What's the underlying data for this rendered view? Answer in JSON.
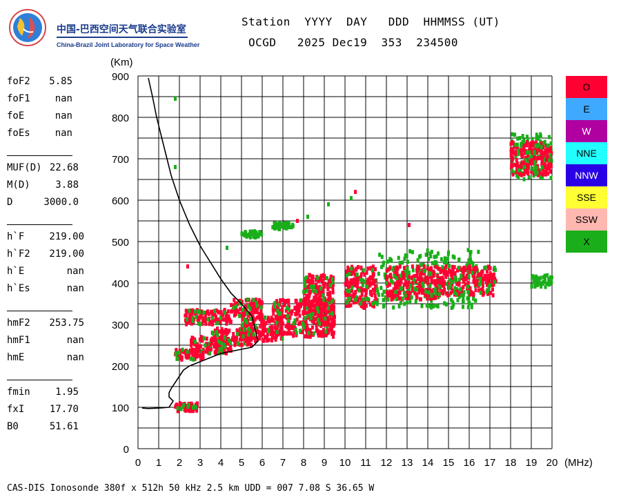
{
  "logo": {
    "cn_text": "中国-巴西空间天气联合实验室",
    "en_text": "China-Brazil Joint Laboratory for Space Weather"
  },
  "header": {
    "line1": "Station  YYYY  DAY   DDD  HHMMSS (UT)",
    "line2": "OCGD   2025 Dec19  353  234500"
  },
  "params": {
    "group1": [
      {
        "name": "foF2",
        "value": "5.85"
      },
      {
        "name": "foF1",
        "value": "nan"
      },
      {
        "name": "foE",
        "value": "nan"
      },
      {
        "name": "foEs",
        "value": "nan"
      }
    ],
    "group2": [
      {
        "name": "MUF(D)",
        "value": "22.68"
      },
      {
        "name": "M(D)",
        "value": "3.88"
      },
      {
        "name": "D",
        "value": "3000.0"
      }
    ],
    "group3": [
      {
        "name": "h`F",
        "value": "219.00"
      },
      {
        "name": "h`F2",
        "value": "219.00"
      },
      {
        "name": "h`E",
        "value": "nan"
      },
      {
        "name": "h`Es",
        "value": "nan"
      }
    ],
    "group4": [
      {
        "name": "hmF2",
        "value": "253.75"
      },
      {
        "name": "hmF1",
        "value": "nan"
      },
      {
        "name": "hmE",
        "value": "nan"
      }
    ],
    "group5": [
      {
        "name": "fmin",
        "value": "1.95"
      },
      {
        "name": "fxI",
        "value": "17.70"
      },
      {
        "name": "B0",
        "value": "51.61"
      }
    ]
  },
  "legend": [
    {
      "label": "O",
      "color": "#ff0033"
    },
    {
      "label": "E",
      "color": "#3fa9ff"
    },
    {
      "label": "W",
      "color": "#b000a0"
    },
    {
      "label": "NNE",
      "color": "#22ffff"
    },
    {
      "label": "NNW",
      "color": "#2a00e6"
    },
    {
      "label": "SSE",
      "color": "#ffff33"
    },
    {
      "label": "SSW",
      "color": "#ffb8b0"
    },
    {
      "label": "X",
      "color": "#1aaf1a"
    }
  ],
  "chart_data": {
    "type": "scatter",
    "xlabel": "(MHz)",
    "ylabel": "(Km)",
    "xlim": [
      0,
      20
    ],
    "ylim": [
      0,
      900
    ],
    "xticks": [
      "0",
      "1",
      "2",
      "3",
      "4",
      "5",
      "6",
      "7",
      "8",
      "9",
      "10",
      "11",
      "12",
      "13",
      "14",
      "15",
      "16",
      "17",
      "18",
      "19",
      "20"
    ],
    "yticks": [
      "0",
      "100",
      "200",
      "300",
      "400",
      "500",
      "600",
      "700",
      "800",
      "900"
    ],
    "grid": true,
    "o_trace_clusters": [
      {
        "x": [
          1.8,
          2.9
        ],
        "y": [
          90,
          110
        ]
      },
      {
        "x": [
          1.8,
          3.2
        ],
        "y": [
          215,
          240
        ]
      },
      {
        "x": [
          2.5,
          4.5
        ],
        "y": [
          230,
          270
        ]
      },
      {
        "x": [
          3.5,
          5.5
        ],
        "y": [
          250,
          290
        ]
      },
      {
        "x": [
          5.0,
          7.0
        ],
        "y": [
          260,
          320
        ]
      },
      {
        "x": [
          6.5,
          9.5
        ],
        "y": [
          270,
          360
        ]
      },
      {
        "x": [
          8.0,
          9.5
        ],
        "y": [
          300,
          420
        ]
      },
      {
        "x": [
          2.2,
          4.5
        ],
        "y": [
          300,
          335
        ]
      },
      {
        "x": [
          4.5,
          6.0
        ],
        "y": [
          320,
          360
        ]
      },
      {
        "x": [
          10.0,
          11.5
        ],
        "y": [
          340,
          440
        ]
      },
      {
        "x": [
          12.0,
          14.5
        ],
        "y": [
          360,
          440
        ]
      },
      {
        "x": [
          14.5,
          17.3
        ],
        "y": [
          370,
          440
        ]
      },
      {
        "x": [
          18.0,
          20.0
        ],
        "y": [
          660,
          740
        ]
      }
    ],
    "x_trace_clusters": [
      {
        "x": [
          5.0,
          6.0
        ],
        "y": [
          510,
          525
        ]
      },
      {
        "x": [
          6.5,
          7.5
        ],
        "y": [
          530,
          545
        ]
      },
      {
        "x": [
          18.0,
          20.0
        ],
        "y": [
          650,
          760
        ]
      },
      {
        "x": [
          11.5,
          16.5
        ],
        "y": [
          340,
          480
        ]
      },
      {
        "x": [
          19.0,
          20.0
        ],
        "y": [
          390,
          420
        ]
      }
    ],
    "profile": {
      "x": [
        0.5,
        0.7,
        0.9,
        1.1,
        1.3,
        1.6,
        2.0,
        2.5,
        3.0,
        3.5,
        4.0,
        4.5,
        5.0,
        5.5,
        5.8,
        5.5,
        5.0,
        4.0,
        3.0,
        2.5,
        2.2,
        2.0,
        1.8,
        1.6,
        1.5,
        1.5,
        1.5,
        1.7,
        1.5,
        1.0,
        0.5,
        0.2
      ],
      "y": [
        895,
        850,
        800,
        760,
        720,
        660,
        600,
        540,
        490,
        450,
        410,
        375,
        350,
        320,
        260,
        245,
        240,
        230,
        210,
        200,
        190,
        175,
        160,
        145,
        135,
        128,
        125,
        115,
        100,
        98,
        97,
        98
      ]
    },
    "stray_points": [
      {
        "x": 1.8,
        "y": 845,
        "color": "#1aaf1a"
      },
      {
        "x": 1.8,
        "y": 680,
        "color": "#1aaf1a"
      },
      {
        "x": 2.4,
        "y": 440,
        "color": "#ff0033"
      },
      {
        "x": 4.3,
        "y": 485,
        "color": "#1aaf1a"
      },
      {
        "x": 7.7,
        "y": 550,
        "color": "#ff0033"
      },
      {
        "x": 8.2,
        "y": 560,
        "color": "#1aaf1a"
      },
      {
        "x": 9.2,
        "y": 590,
        "color": "#1aaf1a"
      },
      {
        "x": 10.3,
        "y": 605,
        "color": "#1aaf1a"
      },
      {
        "x": 10.5,
        "y": 620,
        "color": "#ff0033"
      },
      {
        "x": 13.1,
        "y": 540,
        "color": "#ff0033"
      }
    ]
  },
  "footer": "CAS-DIS Ionosonde 380f x 512h 50 kHz 2.5 km UDD = 007 7.08 S 36.65 W"
}
